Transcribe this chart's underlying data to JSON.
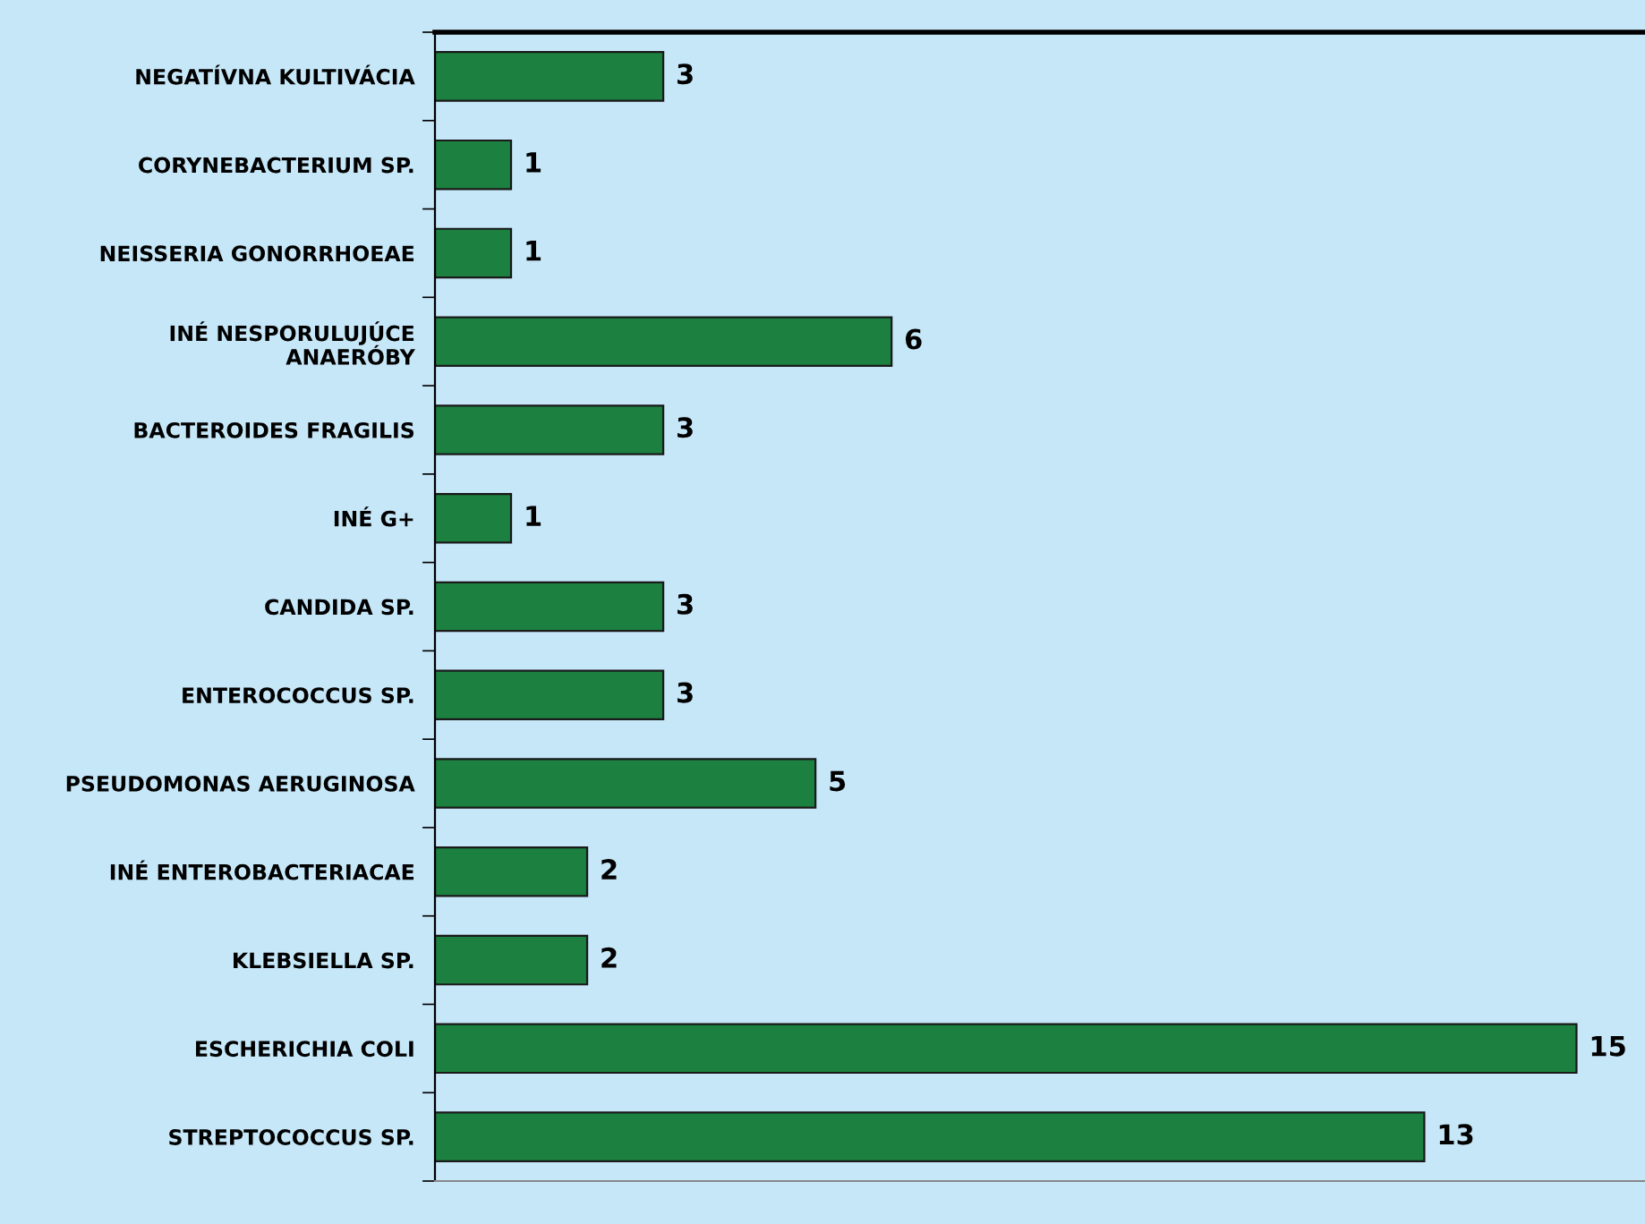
{
  "chart_data": {
    "type": "bar",
    "orientation": "horizontal",
    "categories": [
      "NEGATÍVNA KULTIVÁCIA",
      "CORYNEBACTERIUM SP.",
      "NEISSERIA GONORRHOEAE",
      "INÉ NESPORULUJÚCE\nANAERÓBY",
      "BACTEROIDES FRAGILIS",
      "INÉ G+",
      "CANDIDA SP.",
      "ENTEROCOCCUS SP.",
      "PSEUDOMONAS AERUGINOSA",
      "INÉ ENTEROBACTERIACAE",
      "KLEBSIELLA SP.",
      "ESCHERICHIA COLI",
      "STREPTOCOCCUS SP."
    ],
    "values": [
      3,
      1,
      1,
      6,
      3,
      1,
      3,
      3,
      5,
      2,
      2,
      15,
      13
    ],
    "color": "#1b8040",
    "data_labels": true,
    "grid": false,
    "legend": false
  }
}
